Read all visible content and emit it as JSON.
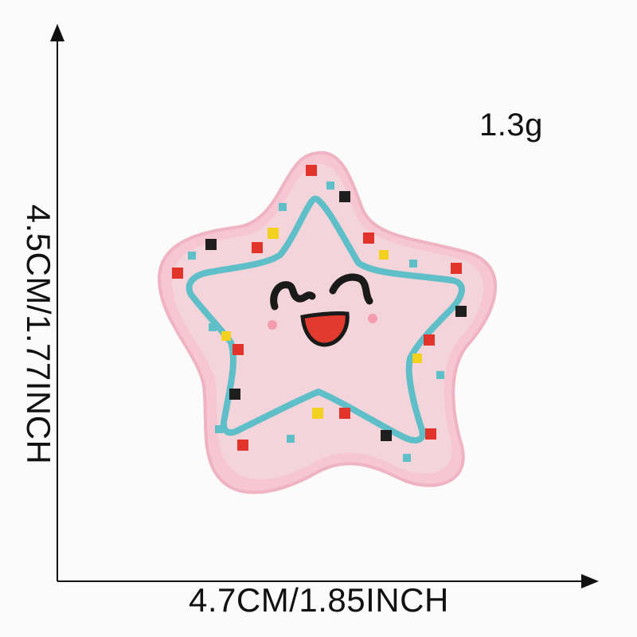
{
  "product": {
    "subject": "star-embroidered-patch",
    "weight": "1.3g",
    "width_label": "4.7CM/1.85INCH",
    "height_label": "4.5CM/1.77INCH"
  },
  "colors": {
    "background": "#fbfbfb",
    "patch_border": "#f6c6d3",
    "patch_fill": "#f3d4da",
    "star_outline": "#5fbfc8",
    "face": "#1a1a1a",
    "mouth": "#e23a2e",
    "dot_red": "#e2332a",
    "dot_yellow": "#f3d21f",
    "dot_black": "#1e1e1e",
    "axis": "#111111"
  }
}
